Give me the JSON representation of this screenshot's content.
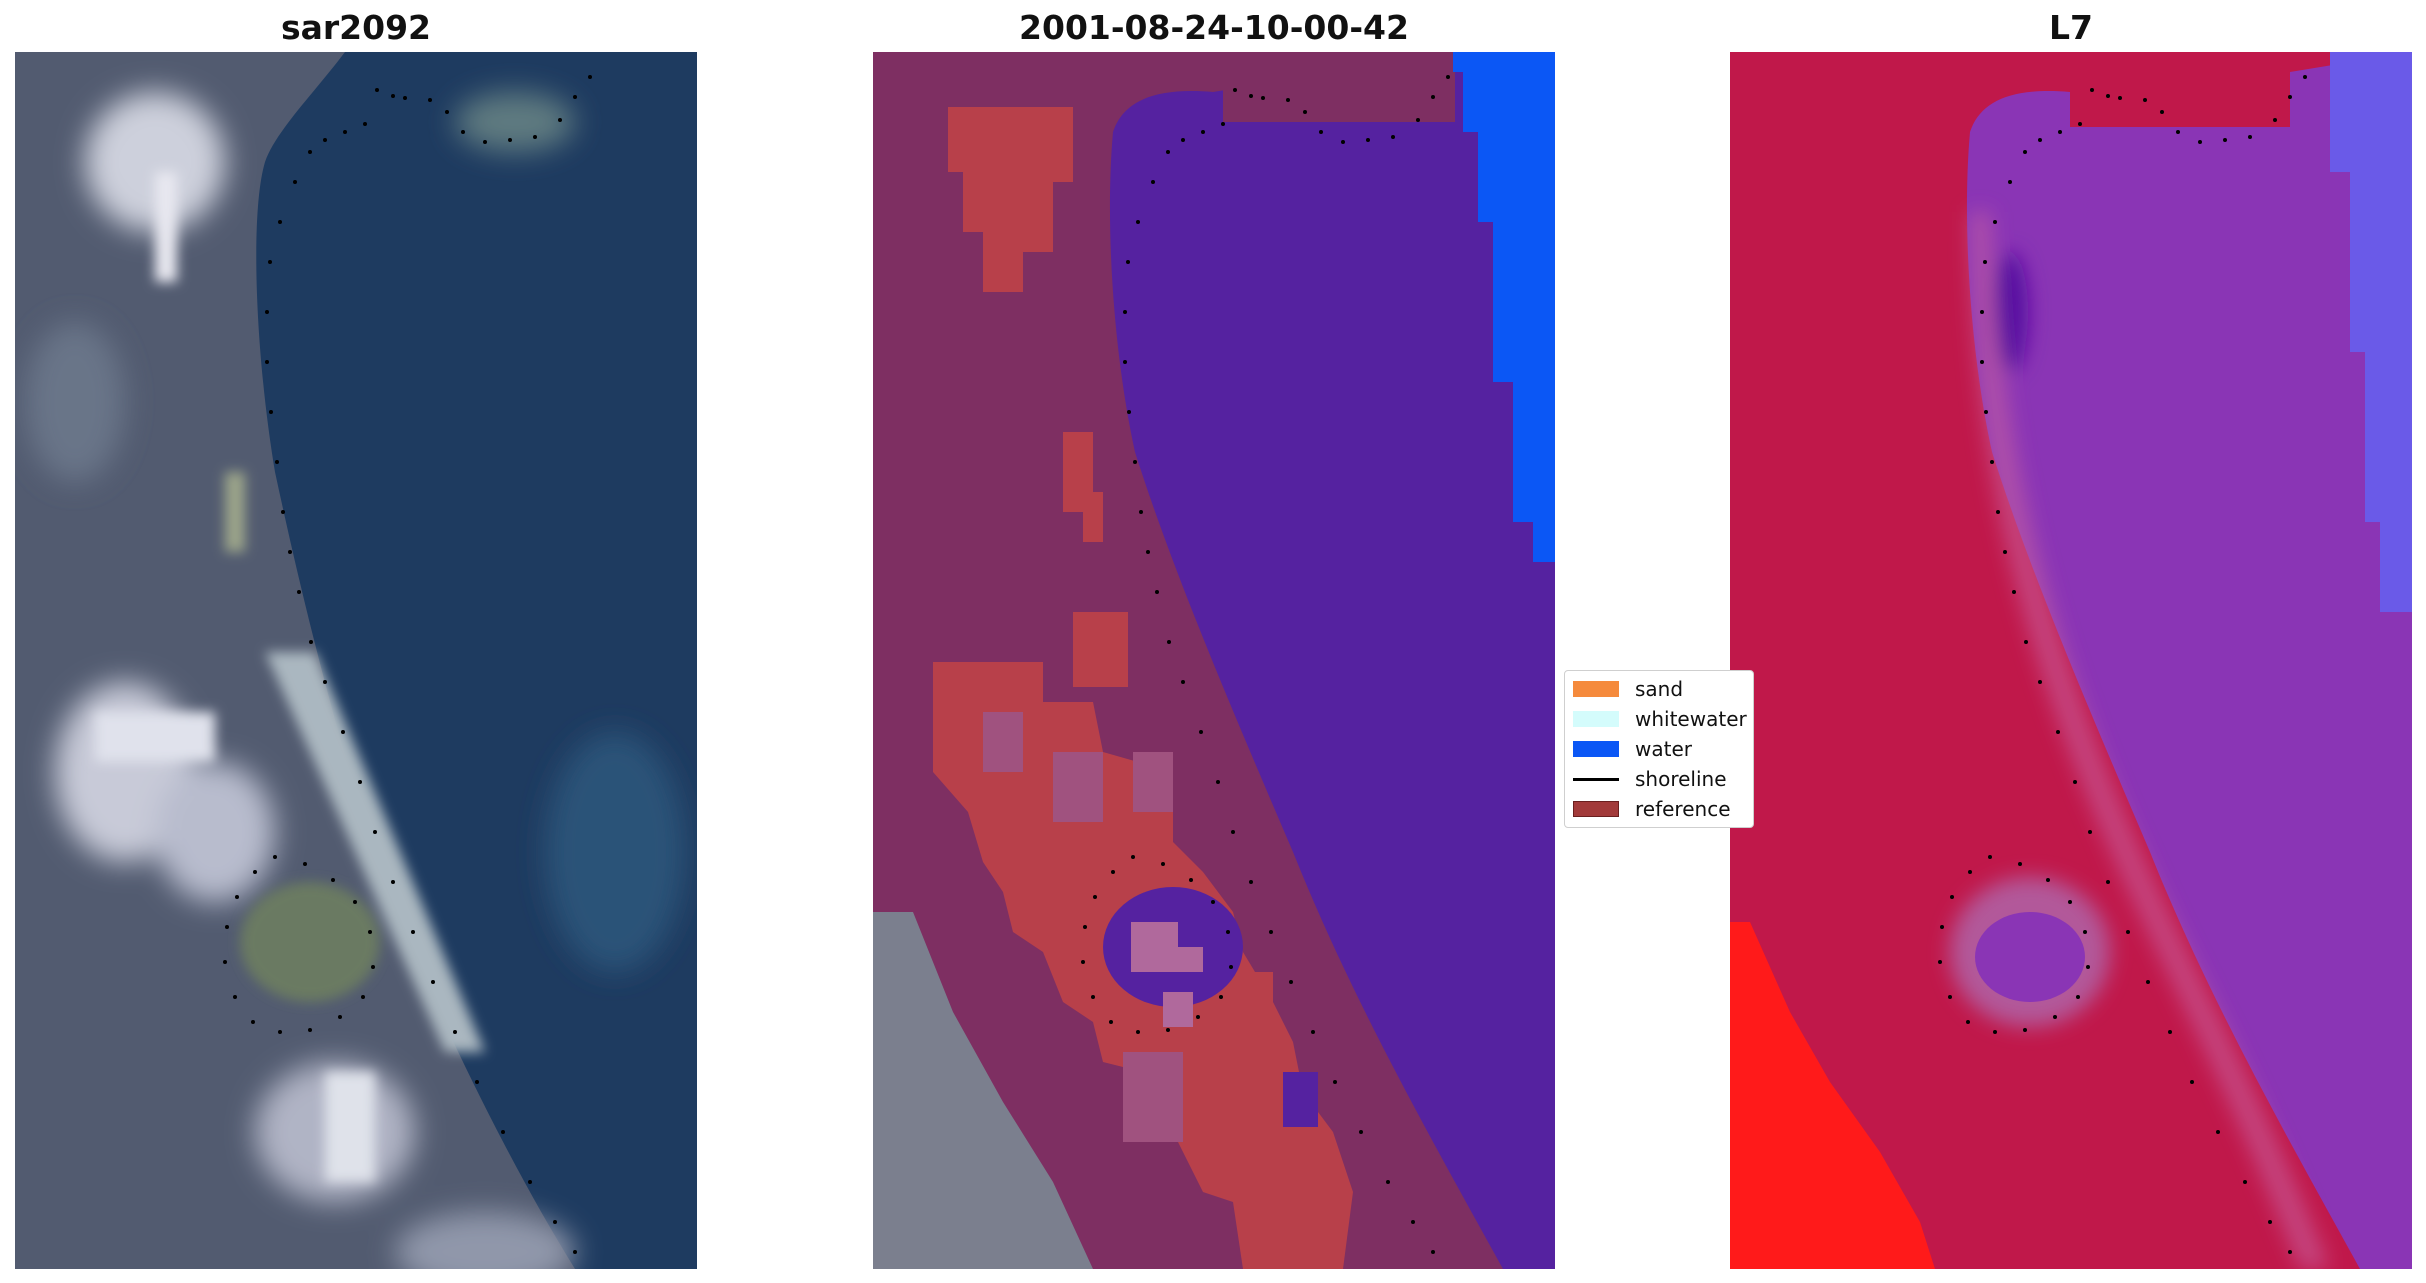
{
  "panels": [
    {
      "title": "sar2092",
      "kind": "rgb-image"
    },
    {
      "title": "2001-08-24-10-00-42",
      "kind": "classified-image"
    },
    {
      "title": "L7",
      "kind": "false-color-image"
    }
  ],
  "legend": {
    "items": [
      {
        "label": "sand",
        "color": "#f58a3c",
        "type": "patch"
      },
      {
        "label": "whitewater",
        "color": "#d4fcfc",
        "type": "patch"
      },
      {
        "label": "water",
        "color": "#0b57f5",
        "type": "patch"
      },
      {
        "label": "shoreline",
        "color": "#000000",
        "type": "line"
      },
      {
        "label": "reference",
        "color": "#a23a3a",
        "type": "patch"
      }
    ]
  },
  "colors": {
    "ocean_rgb": "#1d3a5e",
    "land_rgb": "#4e5a70",
    "water_class": "#5522a0",
    "water_open": "#0b57f5",
    "reference_red": "#b8404a",
    "land_class": "#7e2f62",
    "nir_land": "#c0184a",
    "nir_water": "#8a35b5",
    "nir_bright": "#ff1a1a"
  }
}
